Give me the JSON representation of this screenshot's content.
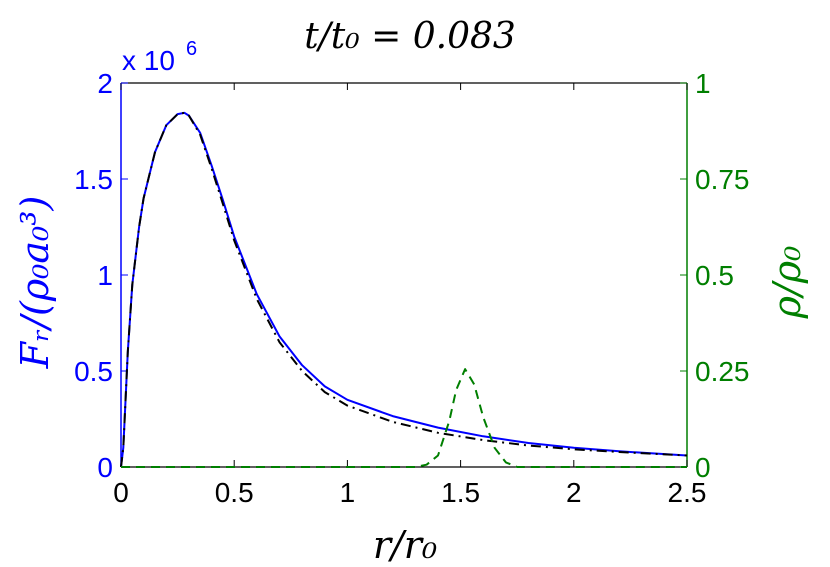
{
  "chart_data": {
    "type": "line",
    "title": "t/t₀ = 0.083",
    "xlabel": "r/r₀",
    "ylabel_left": "Fᵣ/(ρ₀a₀³)",
    "ylabel_right": "ρ/ρ₀",
    "left_exponent_base": "x 10",
    "left_exponent_power": "6",
    "xlim": [
      0,
      2.5
    ],
    "ylim_left": [
      0,
      2000000
    ],
    "ylim_right": [
      0,
      1
    ],
    "x_ticks": [
      0,
      0.5,
      1,
      1.5,
      2,
      2.5
    ],
    "x_tick_labels": [
      "0",
      "0.5",
      "1",
      "1.5",
      "2",
      "2.5"
    ],
    "y_left_ticks": [
      0,
      500000,
      1000000,
      1500000,
      2000000
    ],
    "y_left_tick_labels": [
      "0",
      "0.5",
      "1",
      "1.5",
      "2"
    ],
    "y_right_ticks": [
      0,
      0.25,
      0.5,
      0.75,
      1
    ],
    "y_right_tick_labels": [
      "0",
      "0.25",
      "0.5",
      "0.75",
      "1"
    ],
    "grid": false,
    "series": [
      {
        "axis": "left",
        "color": "#0000ff",
        "style": "solid",
        "x": [
          0.0,
          0.01,
          0.03,
          0.05,
          0.08,
          0.1,
          0.15,
          0.2,
          0.25,
          0.28,
          0.3,
          0.35,
          0.4,
          0.45,
          0.5,
          0.6,
          0.7,
          0.8,
          0.9,
          1.0,
          1.2,
          1.4,
          1.6,
          1.8,
          2.0,
          2.2,
          2.5
        ],
        "y": [
          0,
          100000,
          600000,
          950000,
          1250000,
          1400000,
          1640000,
          1780000,
          1838000,
          1845000,
          1830000,
          1740000,
          1570000,
          1390000,
          1200000,
          900000,
          680000,
          530000,
          420000,
          350000,
          265000,
          205000,
          160000,
          125000,
          100000,
          82000,
          60000
        ]
      },
      {
        "axis": "left",
        "color": "#000000",
        "style": "dashdot",
        "x": [
          0.0,
          0.01,
          0.03,
          0.05,
          0.08,
          0.1,
          0.15,
          0.2,
          0.25,
          0.28,
          0.3,
          0.35,
          0.4,
          0.45,
          0.5,
          0.6,
          0.7,
          0.8,
          0.9,
          1.0,
          1.2,
          1.4,
          1.6,
          1.8,
          2.0,
          2.2,
          2.5
        ],
        "y": [
          0,
          100000,
          600000,
          950000,
          1250000,
          1400000,
          1640000,
          1780000,
          1838000,
          1845000,
          1830000,
          1730000,
          1555000,
          1370000,
          1180000,
          875000,
          650000,
          500000,
          390000,
          320000,
          235000,
          178000,
          140000,
          112000,
          92000,
          78000,
          60000
        ]
      },
      {
        "axis": "right",
        "color": "#007f00",
        "style": "dashed",
        "x": [
          0.0,
          1.3,
          1.35,
          1.4,
          1.45,
          1.48,
          1.52,
          1.56,
          1.6,
          1.65,
          1.7,
          1.75,
          2.5
        ],
        "y": [
          0,
          0,
          0.006,
          0.03,
          0.12,
          0.2,
          0.255,
          0.215,
          0.13,
          0.05,
          0.012,
          0,
          0
        ]
      }
    ]
  }
}
